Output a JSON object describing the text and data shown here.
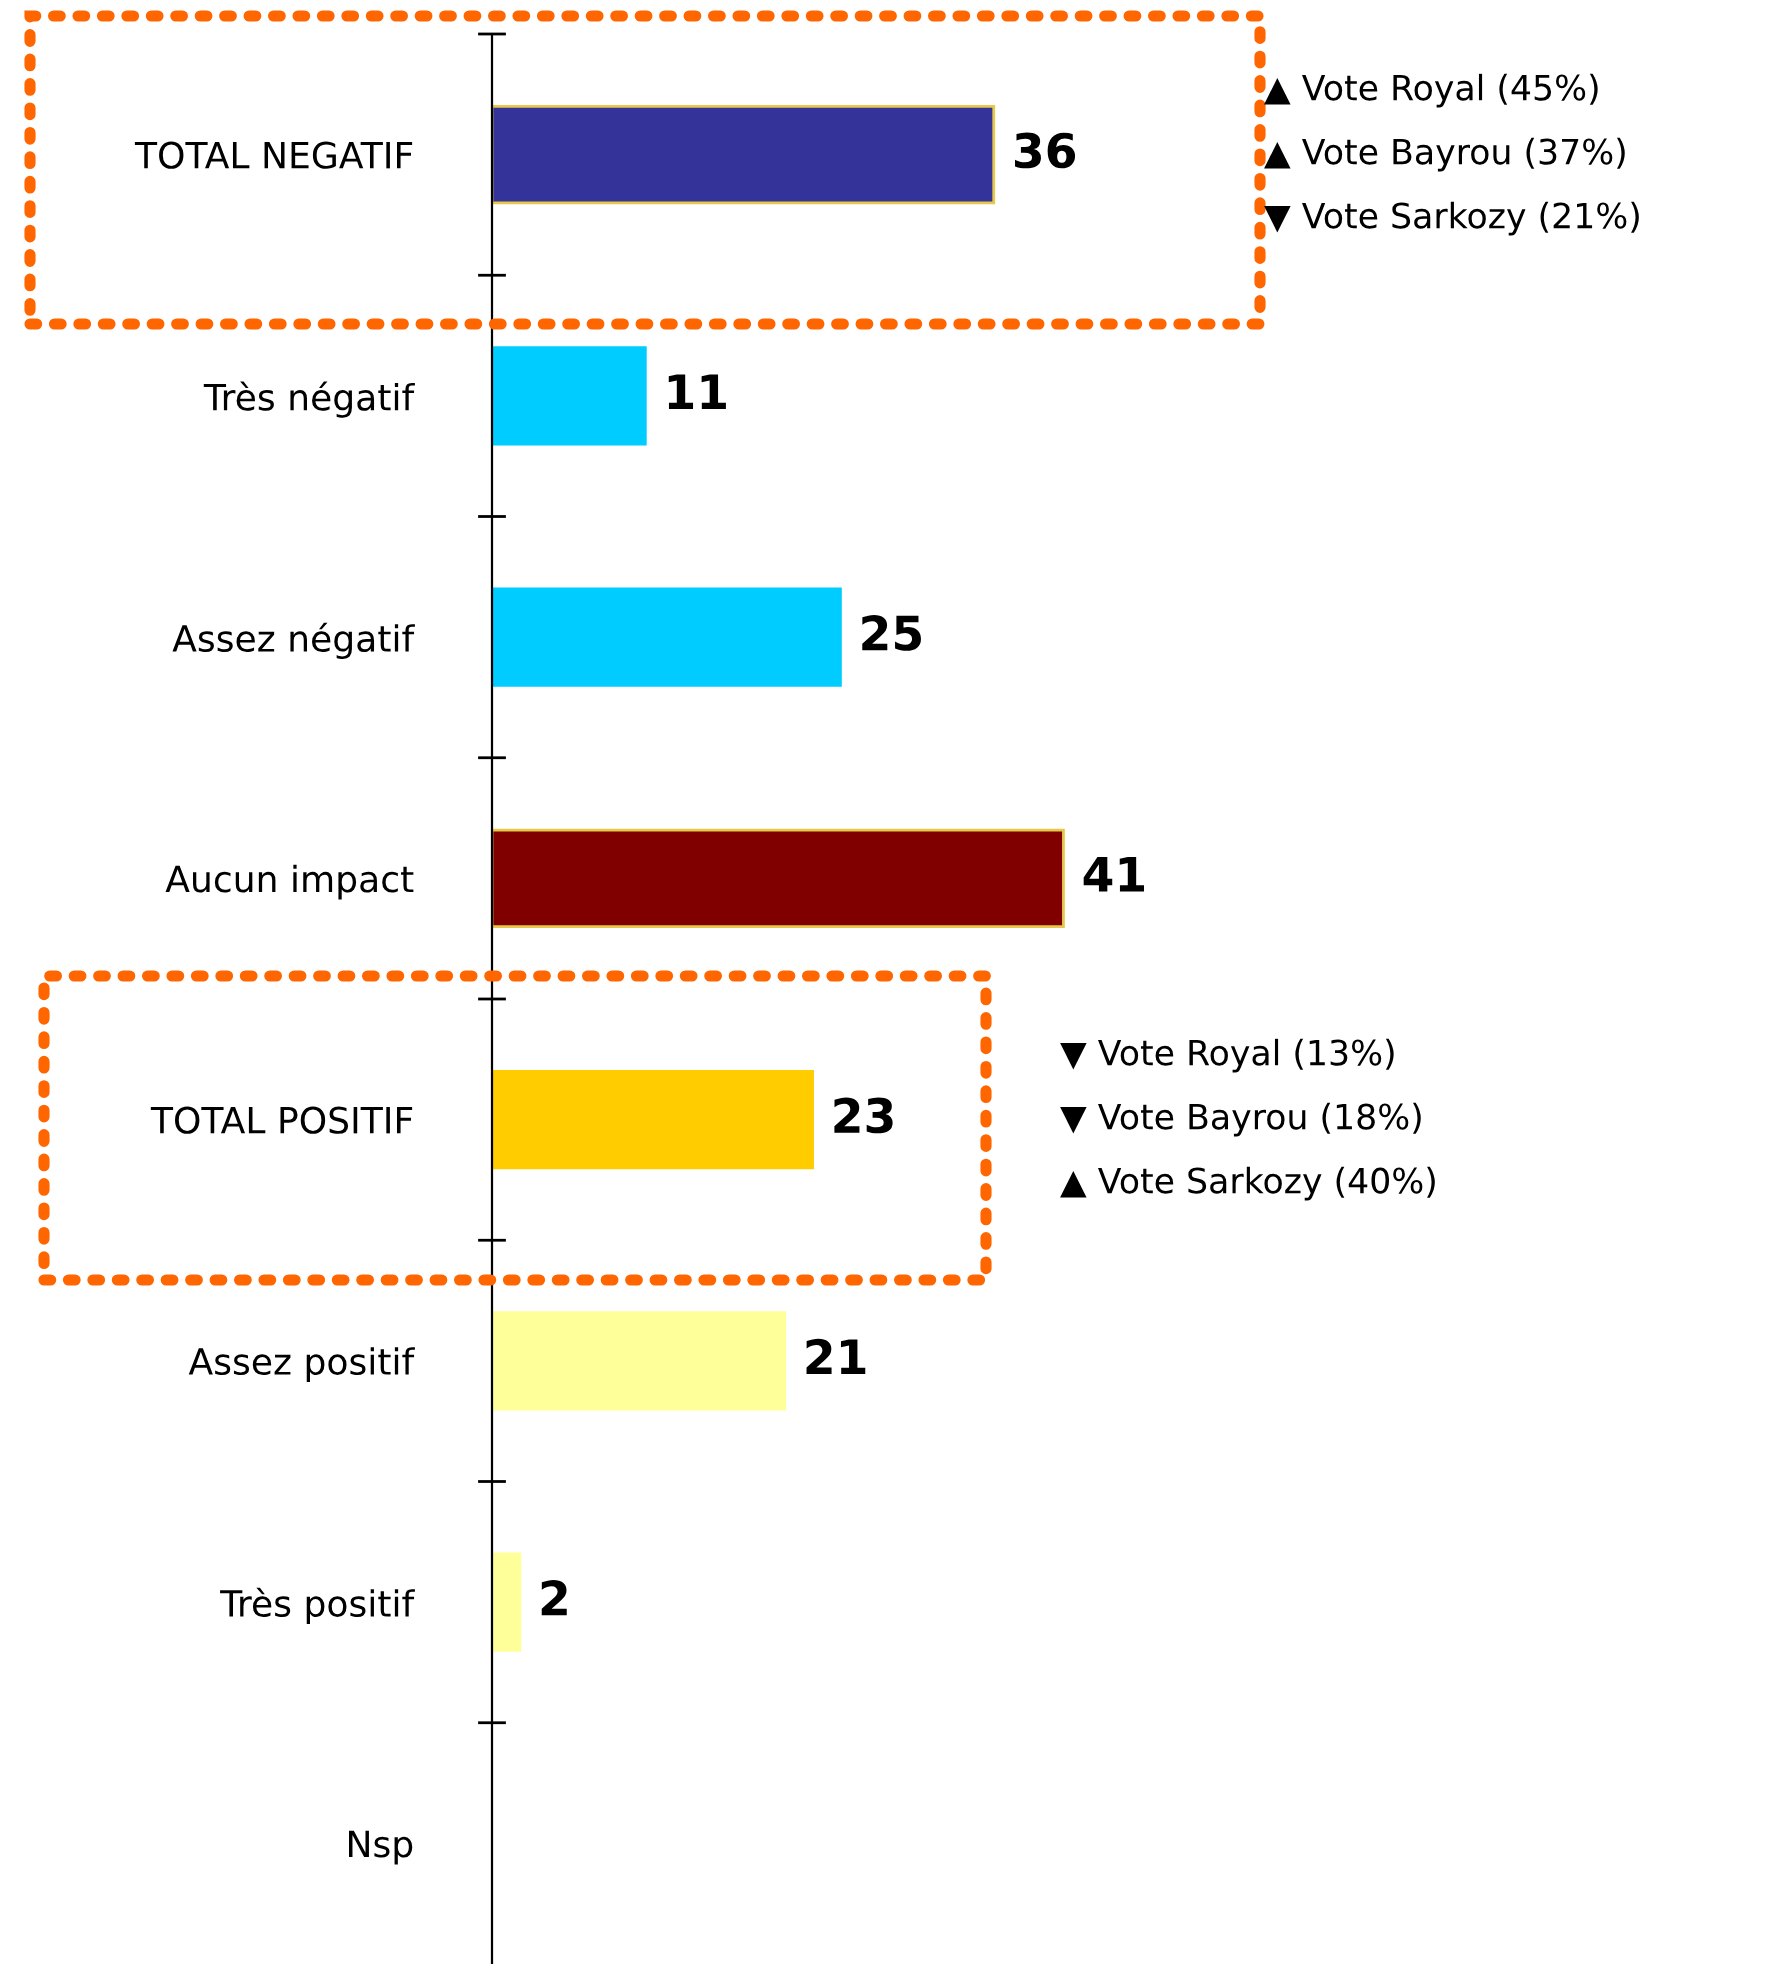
{
  "chart_data": {
    "type": "bar",
    "orientation": "horizontal",
    "categories": [
      "TOTAL NEGATIF",
      "Très négatif",
      "Assez négatif",
      "Aucun impact",
      "TOTAL POSITIF",
      "Assez positif",
      "Très positif",
      "Nsp"
    ],
    "values": [
      36,
      11,
      25,
      41,
      23,
      21,
      2,
      null
    ],
    "colors": [
      "#333399",
      "#00ccff",
      "#00ccff",
      "#800000",
      "#ffcc00",
      "#ffff99",
      "#ffff99",
      "#ffff99"
    ],
    "data_labels": true,
    "tick_labels": "y",
    "grid": false,
    "annotations": [
      "▲ Vote Royal (45%)",
      "▲ Vote Bayrou (37%)",
      "▼ Vote Sarkozy (21%)",
      "▼ Vote Royal (13%)",
      "▼ Vote Bayrou (18%)",
      "▲ Vote Sarkozy (40%)"
    ]
  }
}
